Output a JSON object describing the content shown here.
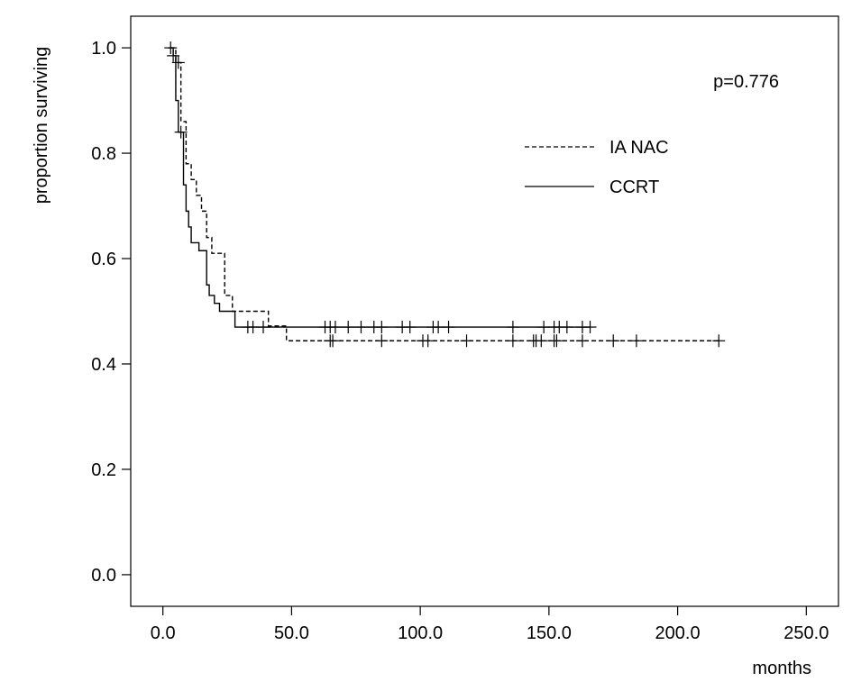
{
  "chart_data": {
    "type": "line",
    "subtype": "kaplan-meier",
    "xlabel": "months",
    "ylabel": "proportion surviving",
    "xlim": [
      -12.5,
      262.5
    ],
    "ylim": [
      -0.06,
      1.06
    ],
    "x_ticks": [
      0,
      50,
      100,
      150,
      200,
      250
    ],
    "x_tick_labels": [
      "0.0",
      "50.0",
      "100.0",
      "150.0",
      "200.0",
      "250.0"
    ],
    "y_ticks": [
      0,
      0.2,
      0.4,
      0.6,
      0.8,
      1.0
    ],
    "y_tick_labels": [
      "0.0",
      "0.2",
      "0.4",
      "0.6",
      "0.8",
      "1.0"
    ],
    "annotation": "p=0.776",
    "grid": false,
    "legend_position": "top-right",
    "series": [
      {
        "name": "IA NAC",
        "line_style": "dashed",
        "color": "#000000",
        "steps": [
          [
            3,
            1.0
          ],
          [
            5,
            0.972
          ],
          [
            7,
            0.86
          ],
          [
            9,
            0.78
          ],
          [
            11,
            0.75
          ],
          [
            13,
            0.72
          ],
          [
            15,
            0.69
          ],
          [
            17,
            0.64
          ],
          [
            19,
            0.61
          ],
          [
            24,
            0.53
          ],
          [
            27,
            0.5
          ],
          [
            41,
            0.472
          ],
          [
            48,
            0.444
          ],
          [
            216,
            0.444
          ]
        ],
        "censored": [
          6,
          65,
          66,
          85,
          101,
          103,
          118,
          136,
          144,
          145,
          147,
          152,
          153,
          163,
          175,
          184,
          216
        ]
      },
      {
        "name": "CCRT",
        "line_style": "solid",
        "color": "#000000",
        "steps": [
          [
            2,
            1.0
          ],
          [
            4,
            0.985
          ],
          [
            5,
            0.9
          ],
          [
            6,
            0.84
          ],
          [
            8,
            0.74
          ],
          [
            9,
            0.69
          ],
          [
            10,
            0.66
          ],
          [
            11,
            0.63
          ],
          [
            14,
            0.615
          ],
          [
            17,
            0.55
          ],
          [
            18,
            0.53
          ],
          [
            20,
            0.515
          ],
          [
            22,
            0.5
          ],
          [
            28,
            0.47
          ],
          [
            166,
            0.47
          ]
        ],
        "censored": [
          3,
          4,
          7,
          33,
          35,
          39,
          63,
          65,
          67,
          72,
          77,
          82,
          85,
          93,
          96,
          105,
          107,
          111,
          136,
          148,
          152,
          154,
          157,
          163,
          166
        ]
      }
    ]
  }
}
